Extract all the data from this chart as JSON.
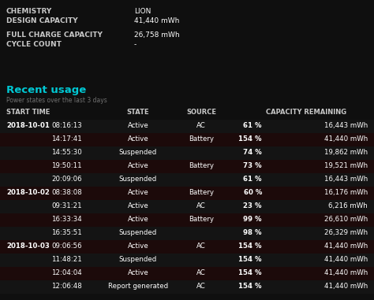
{
  "bg_color": "#0f0f0f",
  "row_odd_color": "#1c0a0a",
  "row_even_color": "#141414",
  "header_color": "#00c8d4",
  "label_color": "#c8c8c8",
  "value_color": "#ffffff",
  "subtext_color": "#707070",
  "bold_col_color": "#ffffff",
  "info_labels": [
    "CHEMISTRY",
    "DESIGN CAPACITY",
    "",
    "FULL CHARGE CAPACITY",
    "CYCLE COUNT"
  ],
  "info_values": [
    "LION",
    "41,440 mWh",
    "",
    "26,758 mWh",
    "-"
  ],
  "section_title": "Recent usage",
  "section_subtitle": "Power states over the last 3 days",
  "col_headers": [
    "START TIME",
    "STATE",
    "SOURCE",
    "CAPACITY REMAINING"
  ],
  "rows": [
    [
      "2018-10-01",
      "08:16:13",
      "Active",
      "AC",
      "61 %",
      "16,443 mWh"
    ],
    [
      "",
      "14:17:41",
      "Active",
      "Battery",
      "154 %",
      "41,440 mWh"
    ],
    [
      "",
      "14:55:30",
      "Suspended",
      "",
      "74 %",
      "19,862 mWh"
    ],
    [
      "",
      "19:50:11",
      "Active",
      "Battery",
      "73 %",
      "19,521 mWh"
    ],
    [
      "",
      "20:09:06",
      "Suspended",
      "",
      "61 %",
      "16,443 mWh"
    ],
    [
      "2018-10-02",
      "08:38:08",
      "Active",
      "Battery",
      "60 %",
      "16,176 mWh"
    ],
    [
      "",
      "09:31:21",
      "Active",
      "AC",
      "23 %",
      "6,216 mWh"
    ],
    [
      "",
      "16:33:34",
      "Active",
      "Battery",
      "99 %",
      "26,610 mWh"
    ],
    [
      "",
      "16:35:51",
      "Suspended",
      "",
      "98 %",
      "26,329 mWh"
    ],
    [
      "2018-10-03",
      "09:06:56",
      "Active",
      "AC",
      "154 %",
      "41,440 mWh"
    ],
    [
      "",
      "11:48:21",
      "Suspended",
      "",
      "154 %",
      "41,440 mWh"
    ],
    [
      "",
      "12:04:04",
      "Active",
      "AC",
      "154 %",
      "41,440 mWh"
    ],
    [
      "",
      "12:06:48",
      "Report generated",
      "AC",
      "154 %",
      "41,440 mWh"
    ]
  ],
  "figsize": [
    4.74,
    3.81
  ],
  "dpi": 100
}
